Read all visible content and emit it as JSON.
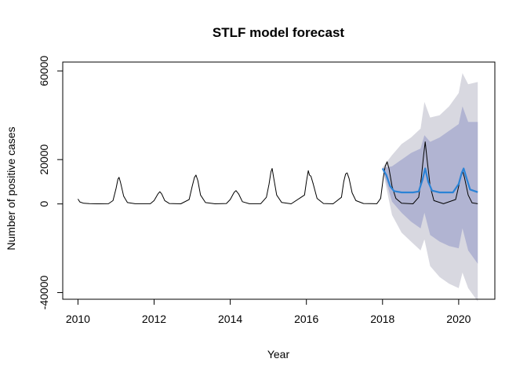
{
  "chart_data": {
    "type": "line",
    "title": "STLF model forecast",
    "xlabel": "Year",
    "ylabel": "Number of positive cases",
    "xlim": [
      2009.6,
      2020.95
    ],
    "ylim": [
      -43000,
      64000
    ],
    "x_ticks": [
      2010,
      2012,
      2014,
      2016,
      2018,
      2020
    ],
    "y_ticks": [
      -40000,
      0,
      20000,
      60000
    ],
    "y_tick_labels": [
      "-40000",
      "0",
      "20000",
      "60000"
    ],
    "grid": false,
    "legend": "none",
    "series": [
      {
        "role": "observed",
        "color": "#000000",
        "points": [
          [
            2010.0,
            2200
          ],
          [
            2010.05,
            900
          ],
          [
            2010.15,
            300
          ],
          [
            2010.3,
            150
          ],
          [
            2010.5,
            50
          ],
          [
            2010.8,
            80
          ],
          [
            2010.92,
            1500
          ],
          [
            2011.0,
            7000
          ],
          [
            2011.05,
            11200
          ],
          [
            2011.08,
            12000
          ],
          [
            2011.12,
            9500
          ],
          [
            2011.2,
            3500
          ],
          [
            2011.3,
            600
          ],
          [
            2011.5,
            80
          ],
          [
            2011.9,
            100
          ],
          [
            2012.0,
            1500
          ],
          [
            2012.1,
            4500
          ],
          [
            2012.15,
            5500
          ],
          [
            2012.2,
            4500
          ],
          [
            2012.28,
            1500
          ],
          [
            2012.4,
            200
          ],
          [
            2012.7,
            50
          ],
          [
            2012.92,
            2000
          ],
          [
            2013.0,
            8000
          ],
          [
            2013.06,
            12000
          ],
          [
            2013.1,
            13000
          ],
          [
            2013.15,
            10500
          ],
          [
            2013.22,
            4000
          ],
          [
            2013.35,
            600
          ],
          [
            2013.6,
            50
          ],
          [
            2013.9,
            200
          ],
          [
            2014.0,
            2000
          ],
          [
            2014.1,
            5200
          ],
          [
            2014.15,
            6000
          ],
          [
            2014.22,
            4500
          ],
          [
            2014.32,
            1000
          ],
          [
            2014.5,
            100
          ],
          [
            2014.8,
            100
          ],
          [
            2014.95,
            3000
          ],
          [
            2015.02,
            9000
          ],
          [
            2015.07,
            14500
          ],
          [
            2015.1,
            16000
          ],
          [
            2015.14,
            12000
          ],
          [
            2015.22,
            4000
          ],
          [
            2015.35,
            700
          ],
          [
            2015.6,
            50
          ],
          [
            2015.95,
            4000
          ],
          [
            2016.0,
            10000
          ],
          [
            2016.05,
            15000
          ],
          [
            2016.08,
            13000
          ],
          [
            2016.12,
            12500
          ],
          [
            2016.18,
            9000
          ],
          [
            2016.28,
            2500
          ],
          [
            2016.45,
            200
          ],
          [
            2016.7,
            50
          ],
          [
            2016.92,
            3000
          ],
          [
            2016.98,
            10000
          ],
          [
            2017.03,
            13500
          ],
          [
            2017.07,
            14000
          ],
          [
            2017.12,
            11500
          ],
          [
            2017.2,
            5000
          ],
          [
            2017.3,
            1500
          ],
          [
            2017.5,
            200
          ],
          [
            2017.85,
            100
          ],
          [
            2017.95,
            2500
          ],
          [
            2018.02,
            12000
          ],
          [
            2018.07,
            17000
          ],
          [
            2018.12,
            19000
          ],
          [
            2018.17,
            16000
          ],
          [
            2018.25,
            8000
          ],
          [
            2018.35,
            2500
          ],
          [
            2018.5,
            300
          ],
          [
            2018.8,
            50
          ],
          [
            2018.95,
            3000
          ],
          [
            2019.02,
            12000
          ],
          [
            2019.08,
            22000
          ],
          [
            2019.12,
            28000
          ],
          [
            2019.17,
            20000
          ],
          [
            2019.25,
            8000
          ],
          [
            2019.35,
            1500
          ],
          [
            2019.6,
            100
          ],
          [
            2019.92,
            2000
          ],
          [
            2020.0,
            8000
          ],
          [
            2020.06,
            13000
          ],
          [
            2020.1,
            15000
          ],
          [
            2020.15,
            12000
          ],
          [
            2020.25,
            4000
          ],
          [
            2020.35,
            500
          ],
          [
            2020.5,
            100
          ]
        ]
      },
      {
        "role": "forecast",
        "color": "#2b83d6",
        "points": [
          [
            2018.0,
            16000
          ],
          [
            2018.1,
            13000
          ],
          [
            2018.2,
            8000
          ],
          [
            2018.3,
            5800
          ],
          [
            2018.5,
            5200
          ],
          [
            2018.8,
            5200
          ],
          [
            2018.95,
            5600
          ],
          [
            2019.05,
            11000
          ],
          [
            2019.12,
            16000
          ],
          [
            2019.2,
            10000
          ],
          [
            2019.3,
            6000
          ],
          [
            2019.5,
            5200
          ],
          [
            2019.85,
            5200
          ],
          [
            2020.0,
            9000
          ],
          [
            2020.08,
            14000
          ],
          [
            2020.13,
            16000
          ],
          [
            2020.2,
            12000
          ],
          [
            2020.3,
            6500
          ],
          [
            2020.5,
            5300
          ]
        ]
      }
    ],
    "bands": [
      {
        "role": "interval-95",
        "color": "#d8d8e0",
        "upper": [
          [
            2018.0,
            16500
          ],
          [
            2018.25,
            22000
          ],
          [
            2018.5,
            27000
          ],
          [
            2018.75,
            30000
          ],
          [
            2019.0,
            34000
          ],
          [
            2019.1,
            46000
          ],
          [
            2019.25,
            39000
          ],
          [
            2019.5,
            40000
          ],
          [
            2019.75,
            44000
          ],
          [
            2020.0,
            50000
          ],
          [
            2020.1,
            59000
          ],
          [
            2020.25,
            54000
          ],
          [
            2020.5,
            55000
          ]
        ],
        "lower": [
          [
            2018.0,
            15500
          ],
          [
            2018.25,
            -5000
          ],
          [
            2018.5,
            -13000
          ],
          [
            2018.75,
            -17000
          ],
          [
            2019.0,
            -21000
          ],
          [
            2019.1,
            -16000
          ],
          [
            2019.25,
            -28000
          ],
          [
            2019.5,
            -33000
          ],
          [
            2019.75,
            -36000
          ],
          [
            2020.0,
            -38000
          ],
          [
            2020.1,
            -31000
          ],
          [
            2020.25,
            -38000
          ],
          [
            2020.5,
            -44000
          ]
        ]
      },
      {
        "role": "interval-80",
        "color": "#b1b4d2",
        "upper": [
          [
            2018.0,
            16200
          ],
          [
            2018.25,
            17000
          ],
          [
            2018.5,
            20000
          ],
          [
            2018.75,
            23000
          ],
          [
            2019.0,
            25000
          ],
          [
            2019.1,
            31000
          ],
          [
            2019.25,
            28000
          ],
          [
            2019.5,
            30000
          ],
          [
            2019.75,
            33000
          ],
          [
            2020.0,
            36000
          ],
          [
            2020.1,
            44000
          ],
          [
            2020.25,
            37000
          ],
          [
            2020.5,
            37000
          ]
        ],
        "lower": [
          [
            2018.0,
            15800
          ],
          [
            2018.25,
            1000
          ],
          [
            2018.5,
            -4000
          ],
          [
            2018.75,
            -8000
          ],
          [
            2019.0,
            -11000
          ],
          [
            2019.1,
            -4000
          ],
          [
            2019.25,
            -14000
          ],
          [
            2019.5,
            -17000
          ],
          [
            2019.75,
            -19000
          ],
          [
            2020.0,
            -20000
          ],
          [
            2020.1,
            -11000
          ],
          [
            2020.25,
            -21000
          ],
          [
            2020.5,
            -27000
          ]
        ]
      }
    ]
  }
}
